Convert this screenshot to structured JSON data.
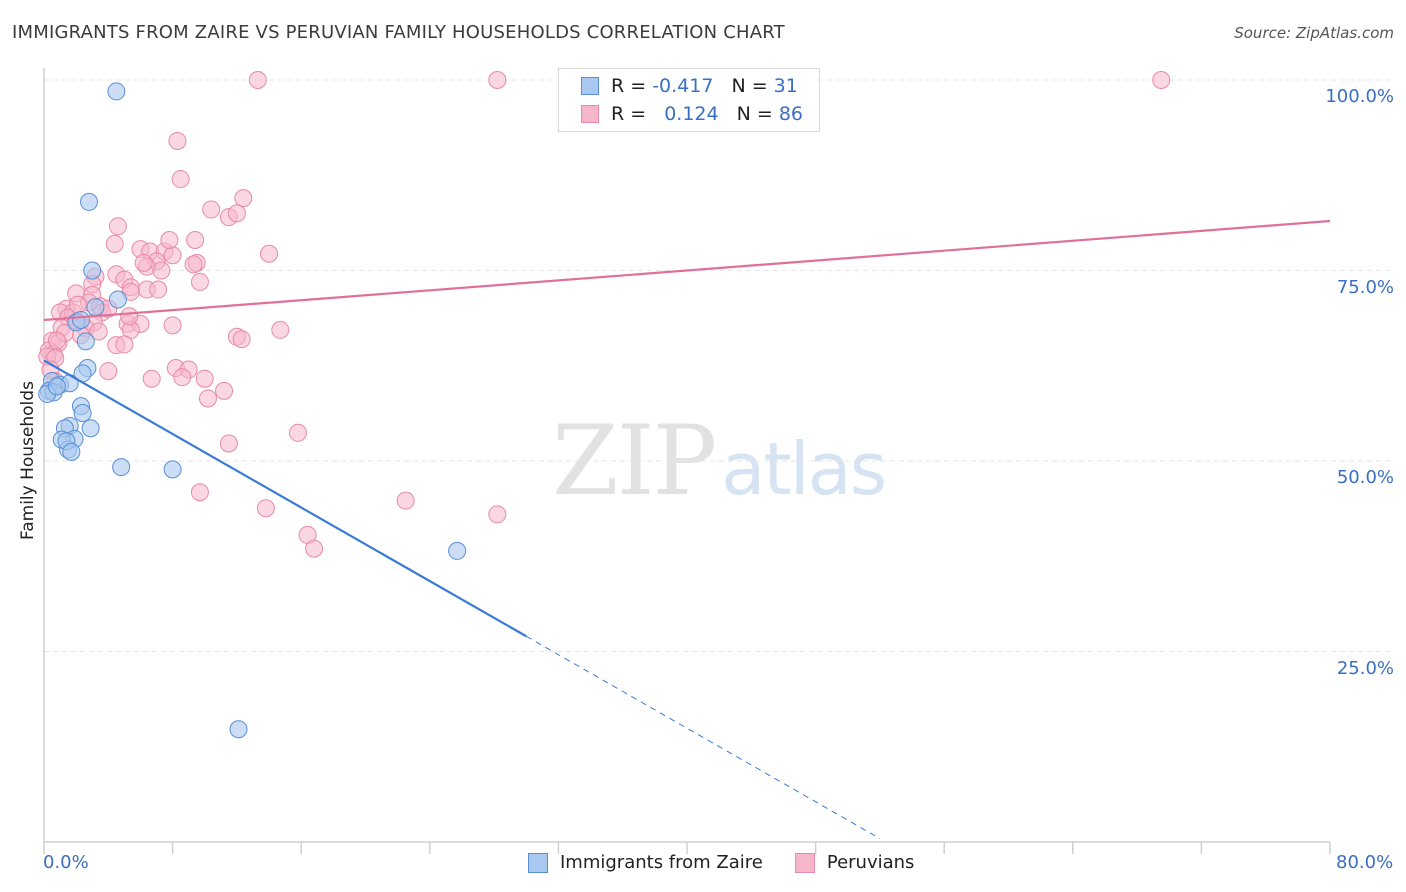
{
  "header": {
    "title": "IMMIGRANTS FROM ZAIRE VS PERUVIAN FAMILY HOUSEHOLDS CORRELATION CHART",
    "source": "Source: ZipAtlas.com"
  },
  "watermark": {
    "zip": "ZIP",
    "atlas": "atlas"
  },
  "legend": {
    "rows": [
      {
        "r_label": "R = ",
        "r_value": "-0.417",
        "n_label": "N = ",
        "n_value": "31"
      },
      {
        "r_label": "R = ",
        "r_value": "0.124",
        "n_label": "N = ",
        "n_value": "86"
      }
    ]
  },
  "colors": {
    "blue_fill": "#a9c8ef",
    "blue_stroke": "#5a8fd6",
    "blue_line": "#3a7bd5",
    "pink_fill": "#f5b6cb",
    "pink_stroke": "#e88aa8",
    "pink_line": "#e0709a",
    "tick_text": "#3a6fc4",
    "grid": "#e6e6e6"
  },
  "chart_data": {
    "type": "scatter",
    "title": "IMMIGRANTS FROM ZAIRE VS PERUVIAN FAMILY HOUSEHOLDS CORRELATION CHART",
    "xlabel": "",
    "ylabel": "Family Households",
    "xlim": [
      0,
      80
    ],
    "ylim": [
      0,
      100
    ],
    "x_tick_labels": [
      "0.0%",
      "80.0%"
    ],
    "y_tick_labels": [
      {
        "value": 25,
        "label": "25.0%"
      },
      {
        "value": 50,
        "label": "50.0%"
      },
      {
        "value": 75,
        "label": "75.0%"
      },
      {
        "value": 100,
        "label": "100.0%"
      }
    ],
    "grid": true,
    "legend_position": "top-center",
    "series": [
      {
        "name": "Immigrants from Zaire",
        "r": -0.417,
        "n": 31,
        "trend": {
          "x0": 0,
          "y0": 63.2,
          "x1": 30,
          "y1": 27.0,
          "dash_to_x": 52
        },
        "points": [
          [
            4.5,
            98.5
          ],
          [
            2.8,
            84
          ],
          [
            3.0,
            75
          ],
          [
            4.6,
            71.2
          ],
          [
            3.2,
            70.2
          ],
          [
            2.0,
            68.2
          ],
          [
            2.6,
            65.7
          ],
          [
            2.7,
            62.2
          ],
          [
            2.4,
            61.5
          ],
          [
            0.5,
            60.5
          ],
          [
            1.0,
            60.0
          ],
          [
            1.6,
            60.2
          ],
          [
            0.3,
            59.2
          ],
          [
            0.6,
            59.0
          ],
          [
            0.2,
            58.8
          ],
          [
            2.3,
            57.2
          ],
          [
            2.4,
            56.3
          ],
          [
            1.6,
            54.6
          ],
          [
            2.9,
            54.3
          ],
          [
            1.3,
            54.3
          ],
          [
            1.9,
            52.9
          ],
          [
            1.1,
            52.8
          ],
          [
            1.5,
            51.5
          ],
          [
            4.8,
            49.2
          ],
          [
            8.0,
            48.9
          ],
          [
            25.7,
            38.2
          ],
          [
            12.1,
            14.8
          ],
          [
            1.4,
            52.6
          ],
          [
            2.3,
            68.5
          ],
          [
            0.8,
            59.8
          ],
          [
            1.7,
            51.2
          ]
        ]
      },
      {
        "name": "Peruvians",
        "r": 0.124,
        "n": 86,
        "trend": {
          "x0": 0,
          "y0": 68.5,
          "x1": 80,
          "y1": 81.5
        },
        "points": [
          [
            13.3,
            100
          ],
          [
            28.2,
            100
          ],
          [
            69.5,
            100
          ],
          [
            8.3,
            92
          ],
          [
            8.5,
            87
          ],
          [
            12.4,
            84.5
          ],
          [
            10.4,
            83
          ],
          [
            11.5,
            82
          ],
          [
            12.0,
            82.5
          ],
          [
            4.6,
            80.8
          ],
          [
            9.4,
            79
          ],
          [
            4.4,
            78.5
          ],
          [
            6.0,
            77.8
          ],
          [
            6.6,
            77.5
          ],
          [
            7.5,
            77.5
          ],
          [
            14.0,
            77.2
          ],
          [
            8.0,
            77
          ],
          [
            7.0,
            76.2
          ],
          [
            9.5,
            76
          ],
          [
            6.4,
            75.5
          ],
          [
            7.3,
            75
          ],
          [
            4.5,
            74.5
          ],
          [
            3.2,
            74.2
          ],
          [
            5.0,
            73.8
          ],
          [
            9.7,
            73.5
          ],
          [
            3.0,
            73.2
          ],
          [
            5.4,
            72.8
          ],
          [
            6.4,
            72.5
          ],
          [
            7.1,
            72.5
          ],
          [
            2.0,
            72
          ],
          [
            5.4,
            72.2
          ],
          [
            3.0,
            71.8
          ],
          [
            2.8,
            70.8
          ],
          [
            1.4,
            70.0
          ],
          [
            3.5,
            70.3
          ],
          [
            1.0,
            69.5
          ],
          [
            1.8,
            69.5
          ],
          [
            3.6,
            69.5
          ],
          [
            4.0,
            70.0
          ],
          [
            1.5,
            68.8
          ],
          [
            2.1,
            68.3
          ],
          [
            3.1,
            68.2
          ],
          [
            5.2,
            68.0
          ],
          [
            6.0,
            68.0
          ],
          [
            8.0,
            67.8
          ],
          [
            1.1,
            67.5
          ],
          [
            2.6,
            67.4
          ],
          [
            5.4,
            67.2
          ],
          [
            14.7,
            67.2
          ],
          [
            2.3,
            66.5
          ],
          [
            12.0,
            66.3
          ],
          [
            12.3,
            66.0
          ],
          [
            0.5,
            65.8
          ],
          [
            0.9,
            65.5
          ],
          [
            4.5,
            65.2
          ],
          [
            5.0,
            65.3
          ],
          [
            0.3,
            64.5
          ],
          [
            0.6,
            64.0
          ],
          [
            0.2,
            63.7
          ],
          [
            0.7,
            63.5
          ],
          [
            8.2,
            62.2
          ],
          [
            9.0,
            62.0
          ],
          [
            4.0,
            61.8
          ],
          [
            8.6,
            61.0
          ],
          [
            10.0,
            60.8
          ],
          [
            6.7,
            60.8
          ],
          [
            0.7,
            60.5
          ],
          [
            11.2,
            59.2
          ],
          [
            10.2,
            58.2
          ],
          [
            15.8,
            53.7
          ],
          [
            11.5,
            52.3
          ],
          [
            22.5,
            44.8
          ],
          [
            9.7,
            45.9
          ],
          [
            13.8,
            43.8
          ],
          [
            28.2,
            43.0
          ],
          [
            16.4,
            40.3
          ],
          [
            16.8,
            38.5
          ],
          [
            1.3,
            66.8
          ],
          [
            0.4,
            62.0
          ],
          [
            0.8,
            65.8
          ],
          [
            3.4,
            67.0
          ],
          [
            2.1,
            70.5
          ],
          [
            6.2,
            76.0
          ],
          [
            7.8,
            79.0
          ],
          [
            5.3,
            69.0
          ],
          [
            9.3,
            75.8
          ]
        ]
      }
    ]
  }
}
